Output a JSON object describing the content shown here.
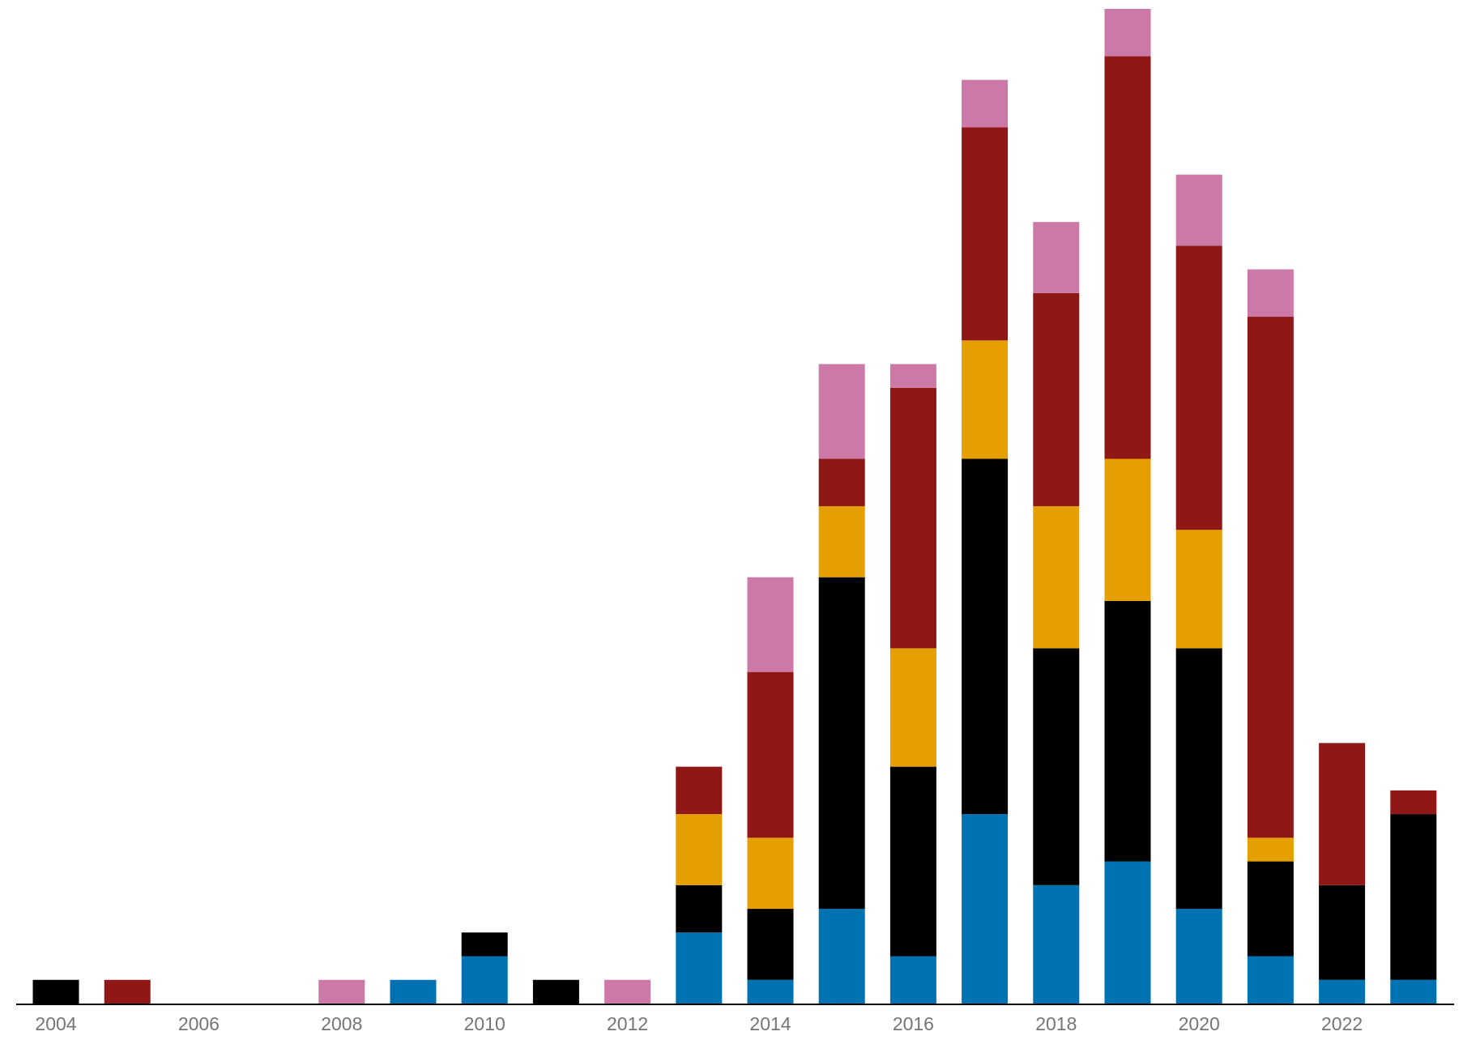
{
  "chart_data": {
    "type": "bar",
    "stacked": true,
    "title": "",
    "xlabel": "",
    "ylabel": "",
    "categories": [
      "2004",
      "2005",
      "2006",
      "2007",
      "2008",
      "2009",
      "2010",
      "2011",
      "2012",
      "2013",
      "2014",
      "2015",
      "2016",
      "2017",
      "2018",
      "2019",
      "2020",
      "2021",
      "2022",
      "2023"
    ],
    "x_tick_labels": [
      "2004",
      "2006",
      "2008",
      "2010",
      "2012",
      "2014",
      "2016",
      "2018",
      "2020",
      "2022"
    ],
    "ylim": [
      0,
      42
    ],
    "grid": false,
    "legend": "none",
    "series": [
      {
        "color": "#0072b2",
        "values": [
          0,
          0,
          0,
          0,
          0,
          1,
          2,
          0,
          0,
          3,
          1,
          4,
          2,
          8,
          5,
          6,
          4,
          2,
          1,
          1
        ]
      },
      {
        "color": "#000000",
        "values": [
          1,
          0,
          0,
          0,
          0,
          0,
          1,
          1,
          0,
          2,
          3,
          14,
          8,
          15,
          10,
          11,
          11,
          4,
          4,
          7
        ]
      },
      {
        "color": "#e69f00",
        "values": [
          0,
          0,
          0,
          0,
          0,
          0,
          0,
          0,
          0,
          3,
          3,
          3,
          5,
          5,
          6,
          6,
          5,
          1,
          0,
          0
        ]
      },
      {
        "color": "#8f1716",
        "values": [
          0,
          1,
          0,
          0,
          0,
          0,
          0,
          0,
          0,
          2,
          7,
          2,
          11,
          9,
          9,
          17,
          12,
          22,
          6,
          1
        ]
      },
      {
        "color": "#cc79a7",
        "values": [
          0,
          0,
          0,
          0,
          1,
          0,
          0,
          0,
          1,
          0,
          4,
          4,
          1,
          2,
          3,
          2,
          3,
          2,
          0,
          0
        ]
      }
    ]
  }
}
